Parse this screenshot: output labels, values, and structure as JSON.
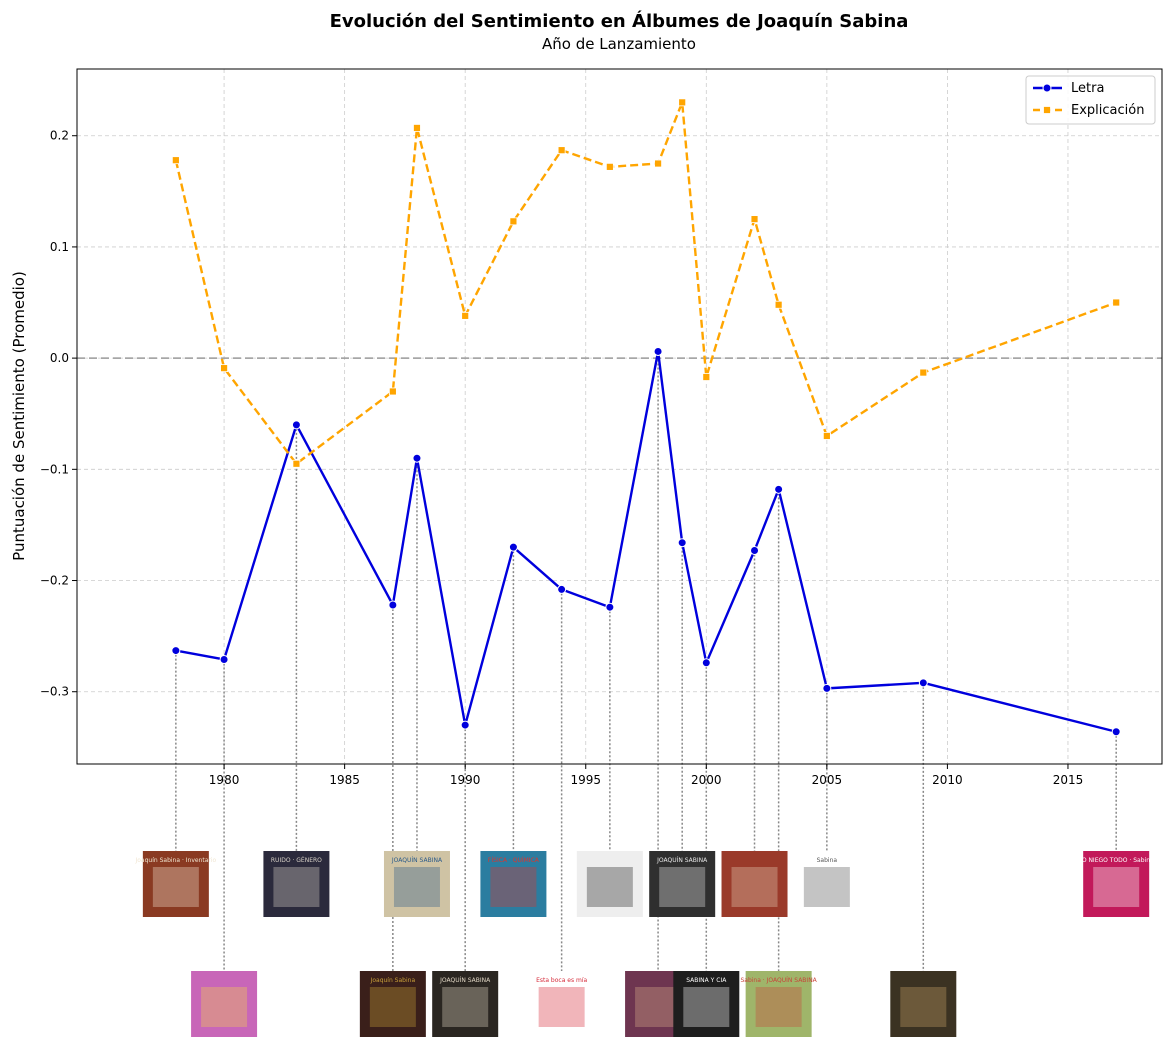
{
  "colors": {
    "letra": "#0000dd",
    "explicacion": "#ffa500",
    "grid": "#cccccc",
    "zero_line": "#999999",
    "connector": "#888888"
  },
  "chart_data": {
    "type": "line",
    "title": "Evolución del Sentimiento en Álbumes de Joaquín Sabina",
    "subtitle": "Año de Lanzamiento",
    "xlabel": "",
    "ylabel": "Puntuación de Sentimiento (Promedio)",
    "xlim": [
      1973.9,
      2018.9
    ],
    "ylim": [
      -0.365,
      0.26
    ],
    "x_ticks": [
      1980,
      1985,
      1990,
      1995,
      2000,
      2005,
      2010,
      2015
    ],
    "y_ticks": [
      -0.3,
      -0.2,
      -0.1,
      0.0,
      0.1,
      0.2
    ],
    "y_tick_labels": [
      "−0.3",
      "−0.2",
      "−0.1",
      "0.0",
      "0.1",
      "0.2"
    ],
    "grid": true,
    "zero_line": true,
    "legend": "top-right",
    "series": [
      {
        "name": "Letra",
        "style": "solid",
        "marker": "circle",
        "x": [
          1978,
          1980,
          1983,
          1987,
          1988,
          1990,
          1992,
          1994,
          1996,
          1998,
          1999,
          2000,
          2002,
          2003,
          2005,
          2009,
          2017
        ],
        "values": [
          -0.263,
          -0.271,
          -0.06,
          -0.222,
          -0.09,
          -0.33,
          -0.17,
          -0.208,
          -0.224,
          0.006,
          -0.166,
          -0.274,
          -0.173,
          -0.118,
          -0.297,
          -0.292,
          -0.336
        ]
      },
      {
        "name": "Explicación",
        "style": "dashed",
        "marker": "square",
        "x": [
          1978,
          1980,
          1983,
          1987,
          1988,
          1990,
          1992,
          1994,
          1996,
          1998,
          1999,
          2000,
          2002,
          2003,
          2005,
          2009,
          2017
        ],
        "values": [
          0.178,
          -0.009,
          -0.095,
          -0.03,
          0.207,
          0.038,
          0.123,
          0.187,
          0.172,
          0.175,
          0.23,
          -0.017,
          0.125,
          0.048,
          -0.07,
          -0.013,
          0.05
        ]
      }
    ],
    "album_covers": [
      {
        "year": 1978,
        "row": 1,
        "bg": "#8a3a22",
        "fg": "#f0e6d2",
        "text": "Joaquín Sabina · Inventario"
      },
      {
        "year": 1980,
        "row": 2,
        "bg": "#c866b8",
        "fg": "#f3d24a",
        "text": ""
      },
      {
        "year": 1983,
        "row": 1,
        "bg": "#2b2a3c",
        "fg": "#d9d3c8",
        "text": "RUIDO · GÉNERO"
      },
      {
        "year": 1987,
        "row": 2,
        "bg": "#3a1f1a",
        "fg": "#c9a03a",
        "text": "Joaquín Sabina"
      },
      {
        "year": 1988,
        "row": 1,
        "bg": "#cfc3a4",
        "fg": "#2a5a8a",
        "text": "JOAQUÍN SABINA"
      },
      {
        "year": 1990,
        "row": 2,
        "bg": "#2a2621",
        "fg": "#e0d6c4",
        "text": "JOAQUÍN SABINA"
      },
      {
        "year": 1992,
        "row": 1,
        "bg": "#2b7da0",
        "fg": "#e0342c",
        "text": "FÍSICA · QUÍMICA"
      },
      {
        "year": 1994,
        "row": 2,
        "bg": "#ffffff",
        "fg": "#d62b3a",
        "text": "Esta boca es mía"
      },
      {
        "year": 1996,
        "row": 1,
        "bg": "#eeeeee",
        "fg": "#222222",
        "text": ""
      },
      {
        "year": 1998,
        "row": 2,
        "bg": "#6e3550",
        "fg": "#d9b08a",
        "text": ""
      },
      {
        "year": 1999,
        "row": 1,
        "bg": "#2f2f2f",
        "fg": "#e8e8e8",
        "text": "JOAQUÍN SABINA"
      },
      {
        "year": 2000,
        "row": 2,
        "bg": "#1e1e1e",
        "fg": "#ffffff",
        "text": "SABINA Y CIA"
      },
      {
        "year": 2002,
        "row": 1,
        "bg": "#9a3a2a",
        "fg": "#e6d2b6",
        "text": ""
      },
      {
        "year": 2003,
        "row": 2,
        "bg": "#9fb56a",
        "fg": "#c8443a",
        "text": "Sabina · JOAQUÍN SABINA"
      },
      {
        "year": 2005,
        "row": 1,
        "bg": "#ffffff",
        "fg": "#555555",
        "text": "Sabina"
      },
      {
        "year": 2009,
        "row": 2,
        "bg": "#3b3222",
        "fg": "#c9a467",
        "text": ""
      },
      {
        "year": 2017,
        "row": 1,
        "bg": "#c2195a",
        "fg": "#ffffff",
        "text": "LO NIEGO TODO · Sabina"
      }
    ]
  }
}
